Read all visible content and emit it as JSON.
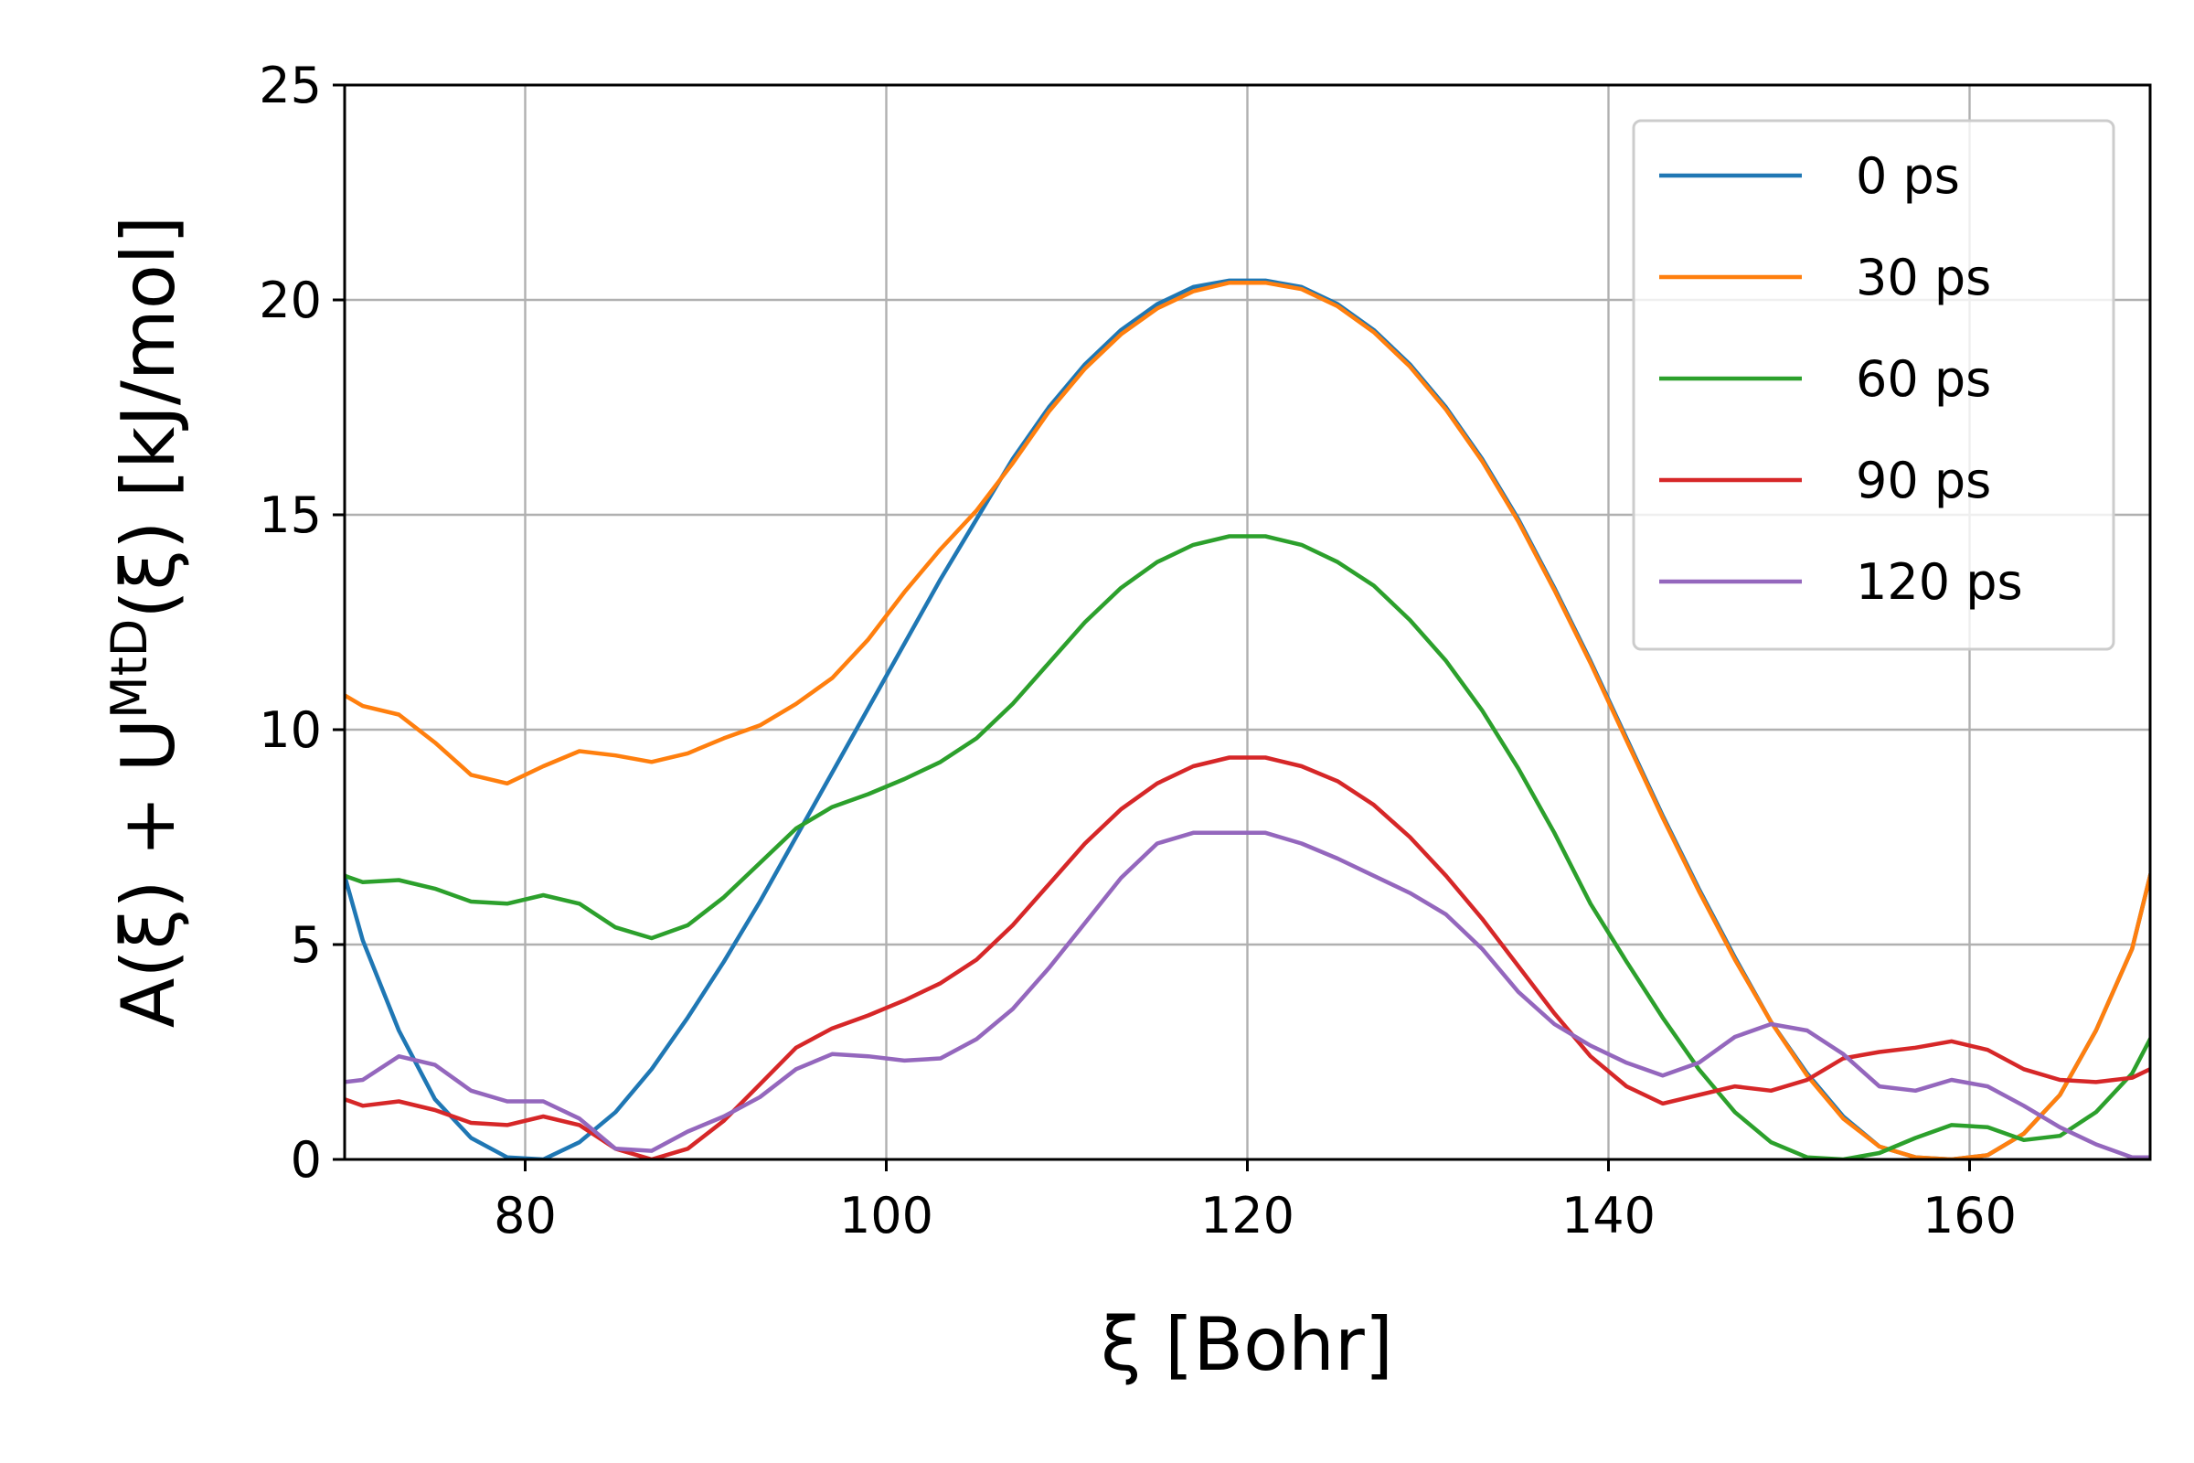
{
  "chart_data": {
    "type": "line",
    "xlabel": "ξ [Bohr]",
    "ylabel": {
      "prefix": "A(ξ) + U",
      "superscript": "MtD",
      "suffix": "(ξ) [kJ/mol]"
    },
    "xlim": [
      70,
      170
    ],
    "ylim": [
      0,
      25
    ],
    "xticks": [
      80,
      100,
      120,
      140,
      160
    ],
    "yticks": [
      0,
      5,
      10,
      15,
      20,
      25
    ],
    "grid": true,
    "legend_position": "top-right",
    "series": [
      {
        "name": "0 ps",
        "color": "#1f77b4",
        "points": [
          [
            70,
            6.6
          ],
          [
            71,
            5.1
          ],
          [
            73,
            3.0
          ],
          [
            75,
            1.4
          ],
          [
            77,
            0.5
          ],
          [
            79,
            0.05
          ],
          [
            81,
            0.0
          ],
          [
            83,
            0.4
          ],
          [
            85,
            1.1
          ],
          [
            87,
            2.1
          ],
          [
            89,
            3.3
          ],
          [
            91,
            4.6
          ],
          [
            93,
            6.0
          ],
          [
            95,
            7.5
          ],
          [
            97,
            9.0
          ],
          [
            99,
            10.5
          ],
          [
            101,
            12.0
          ],
          [
            103,
            13.5
          ],
          [
            105,
            14.9
          ],
          [
            107,
            16.3
          ],
          [
            109,
            17.5
          ],
          [
            111,
            18.5
          ],
          [
            113,
            19.3
          ],
          [
            115,
            19.9
          ],
          [
            117,
            20.3
          ],
          [
            119,
            20.45
          ],
          [
            121,
            20.45
          ],
          [
            123,
            20.3
          ],
          [
            125,
            19.9
          ],
          [
            127,
            19.3
          ],
          [
            129,
            18.5
          ],
          [
            131,
            17.5
          ],
          [
            133,
            16.3
          ],
          [
            135,
            14.9
          ],
          [
            137,
            13.3
          ],
          [
            139,
            11.6
          ],
          [
            141,
            9.8
          ],
          [
            143,
            8.0
          ],
          [
            145,
            6.3
          ],
          [
            147,
            4.7
          ],
          [
            149,
            3.2
          ],
          [
            151,
            2.0
          ],
          [
            153,
            1.0
          ],
          [
            155,
            0.3
          ],
          [
            157,
            0.05
          ],
          [
            159,
            0.0
          ],
          [
            161,
            0.1
          ],
          [
            163,
            0.6
          ],
          [
            165,
            1.5
          ],
          [
            167,
            3.0
          ],
          [
            169,
            4.9
          ],
          [
            170,
            6.6
          ]
        ]
      },
      {
        "name": "30 ps",
        "color": "#ff7f0e",
        "points": [
          [
            70,
            10.8
          ],
          [
            71,
            10.55
          ],
          [
            73,
            10.35
          ],
          [
            75,
            9.7
          ],
          [
            77,
            8.95
          ],
          [
            79,
            8.75
          ],
          [
            81,
            9.15
          ],
          [
            83,
            9.5
          ],
          [
            85,
            9.4
          ],
          [
            87,
            9.25
          ],
          [
            89,
            9.45
          ],
          [
            91,
            9.8
          ],
          [
            93,
            10.1
          ],
          [
            95,
            10.6
          ],
          [
            97,
            11.2
          ],
          [
            99,
            12.1
          ],
          [
            101,
            13.2
          ],
          [
            103,
            14.2
          ],
          [
            105,
            15.1
          ],
          [
            107,
            16.2
          ],
          [
            109,
            17.4
          ],
          [
            111,
            18.4
          ],
          [
            113,
            19.2
          ],
          [
            115,
            19.8
          ],
          [
            117,
            20.2
          ],
          [
            119,
            20.4
          ],
          [
            121,
            20.4
          ],
          [
            123,
            20.25
          ],
          [
            125,
            19.85
          ],
          [
            127,
            19.25
          ],
          [
            129,
            18.45
          ],
          [
            131,
            17.45
          ],
          [
            133,
            16.25
          ],
          [
            135,
            14.85
          ],
          [
            137,
            13.25
          ],
          [
            139,
            11.55
          ],
          [
            141,
            9.75
          ],
          [
            143,
            7.95
          ],
          [
            145,
            6.25
          ],
          [
            147,
            4.65
          ],
          [
            149,
            3.2
          ],
          [
            151,
            1.95
          ],
          [
            153,
            0.95
          ],
          [
            155,
            0.3
          ],
          [
            157,
            0.05
          ],
          [
            159,
            0.0
          ],
          [
            161,
            0.1
          ],
          [
            163,
            0.6
          ],
          [
            165,
            1.5
          ],
          [
            167,
            3.0
          ],
          [
            169,
            4.9
          ],
          [
            170,
            6.6
          ]
        ]
      },
      {
        "name": "60 ps",
        "color": "#2ca02c",
        "points": [
          [
            70,
            6.6
          ],
          [
            71,
            6.45
          ],
          [
            73,
            6.5
          ],
          [
            75,
            6.3
          ],
          [
            77,
            6.0
          ],
          [
            79,
            5.95
          ],
          [
            81,
            6.15
          ],
          [
            83,
            5.95
          ],
          [
            85,
            5.4
          ],
          [
            87,
            5.15
          ],
          [
            89,
            5.45
          ],
          [
            91,
            6.1
          ],
          [
            93,
            6.9
          ],
          [
            95,
            7.7
          ],
          [
            97,
            8.2
          ],
          [
            99,
            8.5
          ],
          [
            101,
            8.85
          ],
          [
            103,
            9.25
          ],
          [
            105,
            9.8
          ],
          [
            107,
            10.6
          ],
          [
            109,
            11.55
          ],
          [
            111,
            12.5
          ],
          [
            113,
            13.3
          ],
          [
            115,
            13.9
          ],
          [
            117,
            14.3
          ],
          [
            119,
            14.5
          ],
          [
            121,
            14.5
          ],
          [
            123,
            14.3
          ],
          [
            125,
            13.9
          ],
          [
            127,
            13.35
          ],
          [
            129,
            12.55
          ],
          [
            131,
            11.6
          ],
          [
            133,
            10.45
          ],
          [
            135,
            9.1
          ],
          [
            137,
            7.6
          ],
          [
            139,
            5.95
          ],
          [
            141,
            4.6
          ],
          [
            143,
            3.3
          ],
          [
            145,
            2.1
          ],
          [
            147,
            1.1
          ],
          [
            149,
            0.4
          ],
          [
            151,
            0.05
          ],
          [
            153,
            0.0
          ],
          [
            155,
            0.15
          ],
          [
            157,
            0.5
          ],
          [
            159,
            0.8
          ],
          [
            161,
            0.75
          ],
          [
            163,
            0.45
          ],
          [
            165,
            0.55
          ],
          [
            167,
            1.1
          ],
          [
            169,
            2.0
          ],
          [
            170,
            2.8
          ]
        ]
      },
      {
        "name": "90 ps",
        "color": "#d62728",
        "points": [
          [
            70,
            1.4
          ],
          [
            71,
            1.25
          ],
          [
            73,
            1.35
          ],
          [
            75,
            1.15
          ],
          [
            77,
            0.85
          ],
          [
            79,
            0.8
          ],
          [
            81,
            1.0
          ],
          [
            83,
            0.8
          ],
          [
            85,
            0.25
          ],
          [
            87,
            0.0
          ],
          [
            89,
            0.25
          ],
          [
            91,
            0.9
          ],
          [
            93,
            1.75
          ],
          [
            95,
            2.6
          ],
          [
            97,
            3.05
          ],
          [
            99,
            3.35
          ],
          [
            101,
            3.7
          ],
          [
            103,
            4.1
          ],
          [
            105,
            4.65
          ],
          [
            107,
            5.45
          ],
          [
            109,
            6.4
          ],
          [
            111,
            7.35
          ],
          [
            113,
            8.15
          ],
          [
            115,
            8.75
          ],
          [
            117,
            9.15
          ],
          [
            119,
            9.35
          ],
          [
            121,
            9.35
          ],
          [
            123,
            9.15
          ],
          [
            125,
            8.8
          ],
          [
            127,
            8.25
          ],
          [
            129,
            7.5
          ],
          [
            131,
            6.6
          ],
          [
            133,
            5.6
          ],
          [
            135,
            4.5
          ],
          [
            137,
            3.4
          ],
          [
            139,
            2.4
          ],
          [
            141,
            1.7
          ],
          [
            143,
            1.3
          ],
          [
            145,
            1.5
          ],
          [
            147,
            1.7
          ],
          [
            149,
            1.6
          ],
          [
            151,
            1.85
          ],
          [
            153,
            2.35
          ],
          [
            155,
            2.5
          ],
          [
            157,
            2.6
          ],
          [
            159,
            2.75
          ],
          [
            161,
            2.55
          ],
          [
            163,
            2.1
          ],
          [
            165,
            1.85
          ],
          [
            167,
            1.8
          ],
          [
            169,
            1.9
          ],
          [
            170,
            2.1
          ]
        ]
      },
      {
        "name": "120 ps",
        "color": "#9467bd",
        "points": [
          [
            70,
            1.8
          ],
          [
            71,
            1.85
          ],
          [
            73,
            2.4
          ],
          [
            75,
            2.2
          ],
          [
            77,
            1.6
          ],
          [
            79,
            1.35
          ],
          [
            81,
            1.35
          ],
          [
            83,
            0.95
          ],
          [
            85,
            0.25
          ],
          [
            87,
            0.2
          ],
          [
            89,
            0.65
          ],
          [
            91,
            1.0
          ],
          [
            93,
            1.45
          ],
          [
            95,
            2.1
          ],
          [
            97,
            2.45
          ],
          [
            99,
            2.4
          ],
          [
            101,
            2.3
          ],
          [
            103,
            2.35
          ],
          [
            105,
            2.8
          ],
          [
            107,
            3.5
          ],
          [
            109,
            4.45
          ],
          [
            111,
            5.5
          ],
          [
            113,
            6.55
          ],
          [
            115,
            7.35
          ],
          [
            117,
            7.6
          ],
          [
            119,
            7.6
          ],
          [
            121,
            7.6
          ],
          [
            123,
            7.35
          ],
          [
            125,
            7.0
          ],
          [
            127,
            6.6
          ],
          [
            129,
            6.2
          ],
          [
            131,
            5.7
          ],
          [
            133,
            4.9
          ],
          [
            135,
            3.9
          ],
          [
            137,
            3.15
          ],
          [
            139,
            2.65
          ],
          [
            141,
            2.25
          ],
          [
            143,
            1.95
          ],
          [
            145,
            2.25
          ],
          [
            147,
            2.85
          ],
          [
            149,
            3.15
          ],
          [
            151,
            3.0
          ],
          [
            153,
            2.45
          ],
          [
            155,
            1.7
          ],
          [
            157,
            1.6
          ],
          [
            159,
            1.85
          ],
          [
            161,
            1.7
          ],
          [
            163,
            1.25
          ],
          [
            165,
            0.75
          ],
          [
            167,
            0.35
          ],
          [
            169,
            0.05
          ],
          [
            170,
            0.05
          ]
        ]
      }
    ]
  }
}
